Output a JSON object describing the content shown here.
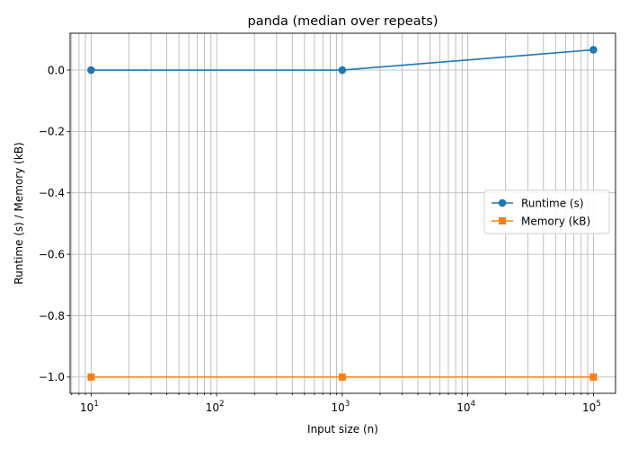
{
  "chart_data": {
    "type": "line",
    "title": "panda (median over repeats)",
    "xlabel": "Input size (n)",
    "ylabel": "Runtime (s) / Memory (kB)",
    "xscale": "log",
    "xlim": [
      6.8,
      150000
    ],
    "ylim": [
      -1.053,
      0.12
    ],
    "x_tick_labels": [
      {
        "base": "10",
        "exp": "1"
      },
      {
        "base": "10",
        "exp": "2"
      },
      {
        "base": "10",
        "exp": "3"
      },
      {
        "base": "10",
        "exp": "4"
      },
      {
        "base": "10",
        "exp": "5"
      }
    ],
    "y_ticks": [
      0.0,
      -0.2,
      -0.4,
      -0.6,
      -0.8,
      -1.0
    ],
    "y_tick_labels": [
      "0.0",
      "−0.2",
      "−0.4",
      "−0.6",
      "−0.8",
      "−1.0"
    ],
    "grid": true,
    "legend_position": "center-right",
    "x": [
      10,
      1000,
      100000
    ],
    "series": [
      {
        "name": "Runtime (s)",
        "values": [
          0.0,
          0.0,
          0.066
        ],
        "color": "#1f77b4",
        "marker": "circle"
      },
      {
        "name": "Memory (kB)",
        "values": [
          -1.0,
          -1.0,
          -1.0
        ],
        "color": "#ff7f0e",
        "marker": "square"
      }
    ]
  }
}
